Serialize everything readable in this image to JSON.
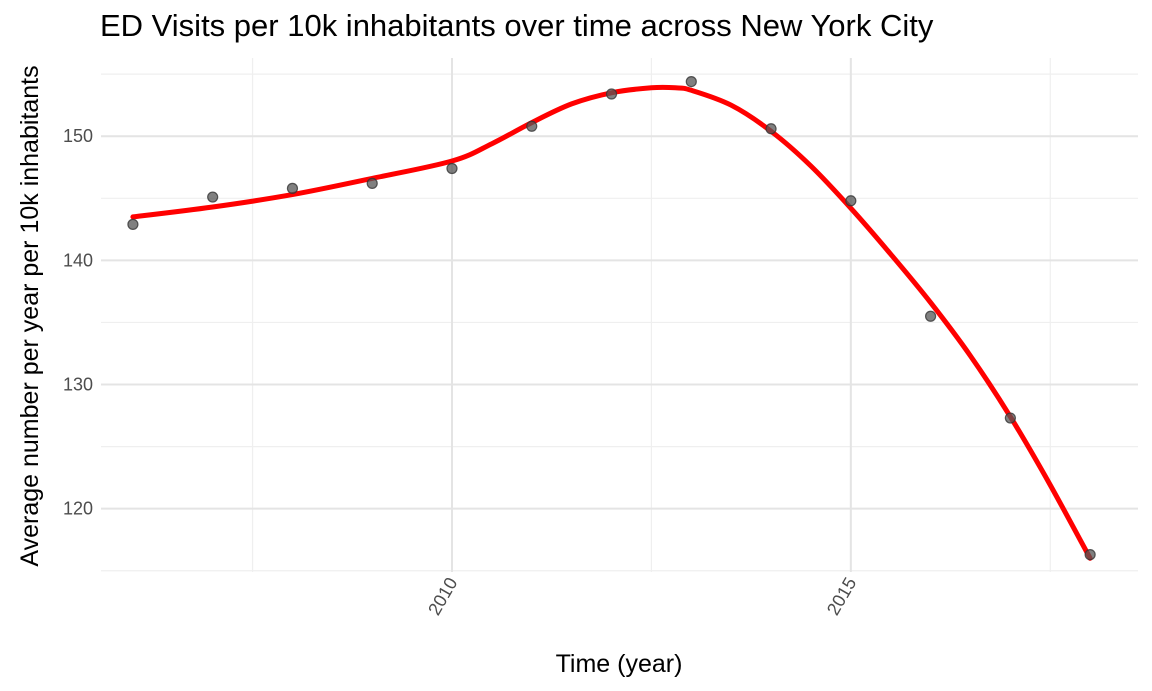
{
  "chart_data": {
    "type": "scatter",
    "title": "ED Visits per 10k inhabitants over time across New York City",
    "xlabel": "Time (year)",
    "ylabel": "Average number per year per 10k inhabitants",
    "xlim": [
      2005.6,
      2018.6
    ],
    "ylim": [
      114.9,
      156.3
    ],
    "x_ticks": [
      2010,
      2015
    ],
    "x_tick_labels": [
      "2010",
      "2015"
    ],
    "y_ticks": [
      120,
      130,
      140,
      150
    ],
    "y_tick_labels": [
      "120",
      "130",
      "140",
      "150"
    ],
    "grid": true,
    "legend": "none",
    "series": [
      {
        "kind": "points",
        "color": "#555555",
        "x": [
          2006,
          2007,
          2008,
          2009,
          2010,
          2011,
          2012,
          2013,
          2014,
          2015,
          2016,
          2017,
          2018
        ],
        "y": [
          142.9,
          145.1,
          145.8,
          146.2,
          147.4,
          150.8,
          153.4,
          154.4,
          150.6,
          144.8,
          135.5,
          127.3,
          116.3
        ]
      },
      {
        "kind": "smooth-line",
        "color": "#ff0000",
        "x": [
          2006,
          2007,
          2008,
          2009,
          2010,
          2010.5,
          2011,
          2011.5,
          2012,
          2012.5,
          2012.8,
          2013,
          2013.5,
          2014,
          2014.5,
          2015,
          2015.5,
          2016,
          2016.5,
          2017,
          2017.5,
          2018
        ],
        "y": [
          143.5,
          144.3,
          145.3,
          146.6,
          148.0,
          149.4,
          151.1,
          152.6,
          153.5,
          153.9,
          153.9,
          153.7,
          152.5,
          150.4,
          147.6,
          144.2,
          140.5,
          136.6,
          132.3,
          127.4,
          121.9,
          116.0
        ]
      }
    ]
  }
}
